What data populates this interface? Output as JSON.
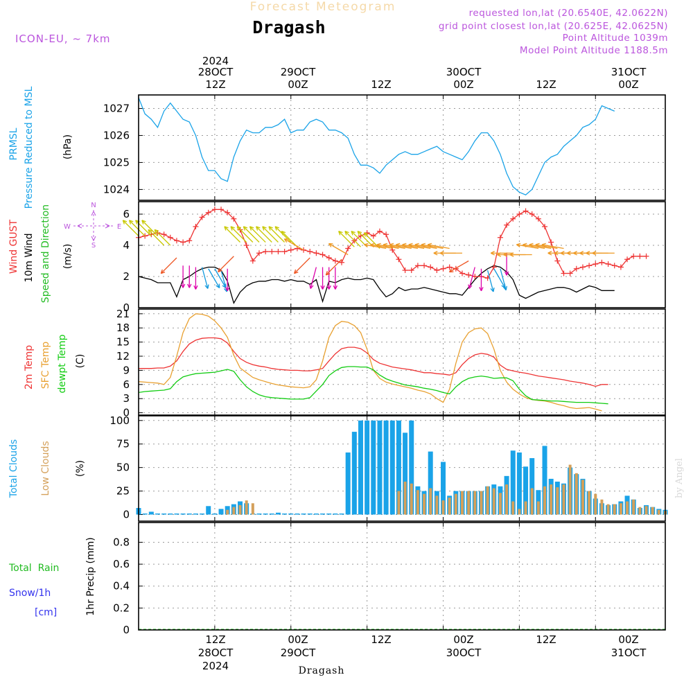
{
  "header": {
    "title": "Forecast Meteogram",
    "location": "Dragash",
    "model": "ICON-EU, ~ 7km",
    "requested": "requested lon,lat (20.6540E, 42.0622N)",
    "grid_point": "grid point closest lon,lat (20.625E, 42.0625N)",
    "point_altitude": "Point Altitude 1039m",
    "model_altitude": "Model Point Altitude 1188.5m"
  },
  "footer": {
    "location": "Dragash",
    "watermark": "by Angel"
  },
  "colors": {
    "pressure": "#1aa3e8",
    "gust": "#ee3333",
    "wind": "#000000",
    "direction": "#22bb22",
    "temp": "#ee3333",
    "sfc": "#e8a030",
    "dewpt": "#11cc11",
    "total_clouds": "#1aa3e8",
    "low_clouds": "#d4a05a",
    "rain": "#22bb22",
    "snow": "#3333ee",
    "compass": "#bb55dd",
    "header": "#bb55dd"
  },
  "time_axis": {
    "start_hour": 0,
    "end_hour": 83,
    "hour_ticks": [
      {
        "hour": 12,
        "label": "12Z",
        "date": "28OCT",
        "year": "2024"
      },
      {
        "hour": 24,
        "label": "00Z",
        "date": "29OCT"
      },
      {
        "hour": 36,
        "label": "12Z"
      },
      {
        "hour": 48,
        "label": "00Z",
        "date": "30OCT"
      },
      {
        "hour": 60,
        "label": "12Z"
      },
      {
        "hour": 72,
        "label": "00Z",
        "date": "31OCT"
      }
    ]
  },
  "chart_data": [
    {
      "type": "line",
      "panel": "pressure",
      "ylabel_lines": [
        "PRMSL",
        "Pressure Reduced to MSL"
      ],
      "unit": "(hPa)",
      "ylim": [
        1023.6,
        1027.5
      ],
      "yticks": [
        1024,
        1025,
        1026,
        1027
      ],
      "series": [
        {
          "name": "PRMSL",
          "values": [
            1027.4,
            1026.8,
            1026.6,
            1026.3,
            1026.9,
            1027.2,
            1026.9,
            1026.6,
            1026.5,
            1026.0,
            1025.2,
            1024.7,
            1024.7,
            1024.4,
            1024.3,
            1025.2,
            1025.8,
            1026.2,
            1026.1,
            1026.1,
            1026.3,
            1026.3,
            1026.4,
            1026.6,
            1026.1,
            1026.2,
            1026.2,
            1026.5,
            1026.6,
            1026.5,
            1026.2,
            1026.2,
            1026.1,
            1025.9,
            1025.3,
            1024.9,
            1024.9,
            1024.8,
            1024.6,
            1024.9,
            1025.1,
            1025.3,
            1025.4,
            1025.3,
            1025.3,
            1025.4,
            1025.5,
            1025.6,
            1025.4,
            1025.3,
            1025.2,
            1025.1,
            1025.4,
            1025.8,
            1026.1,
            1026.1,
            1025.8,
            1025.3,
            1024.6,
            1024.1,
            1023.9,
            1023.8,
            1024.0,
            1024.5,
            1025.0,
            1025.2,
            1025.3,
            1025.6,
            1025.8,
            1026.0,
            1026.3,
            1026.4,
            1026.6,
            1027.1,
            1027.0,
            1026.9
          ]
        }
      ]
    },
    {
      "type": "line",
      "panel": "wind",
      "ylabel_lines": [
        "Wind GUST",
        "10m Wind",
        "Speed and Direction"
      ],
      "unit": "(m/s)",
      "compass": {
        "n": "N",
        "s": "S",
        "e": "E",
        "w": "W"
      },
      "ylim": [
        0,
        6.8
      ],
      "yticks": [
        0,
        2,
        4,
        6
      ],
      "series": [
        {
          "name": "Wind GUST",
          "values": [
            4.5,
            4.6,
            4.7,
            4.8,
            4.7,
            4.5,
            4.3,
            4.2,
            4.3,
            5.2,
            5.8,
            6.1,
            6.3,
            6.3,
            6.1,
            5.7,
            5.0,
            4.0,
            3.0,
            3.5,
            3.6,
            3.6,
            3.6,
            3.6,
            3.7,
            3.8,
            3.7,
            3.6,
            3.5,
            3.4,
            3.2,
            3.0,
            2.9,
            3.8,
            4.3,
            4.6,
            4.8,
            4.6,
            4.9,
            4.7,
            3.7,
            3.1,
            2.4,
            2.4,
            2.7,
            2.7,
            2.6,
            2.4,
            2.5,
            2.6,
            2.5,
            2.2,
            2.1,
            2.0,
            2.0,
            1.9,
            2.6,
            4.5,
            5.3,
            5.7,
            6.0,
            6.2,
            6.0,
            5.7,
            5.2,
            4.2,
            3.0,
            2.2,
            2.2,
            2.5,
            2.6,
            2.7,
            2.8,
            2.9,
            2.8,
            2.7,
            2.6,
            3.1,
            3.3,
            3.3,
            3.3
          ]
        },
        {
          "name": "10m Wind",
          "values": [
            2.0,
            1.9,
            1.8,
            1.6,
            1.6,
            1.6,
            0.7,
            1.8,
            2.0,
            2.3,
            2.5,
            2.6,
            2.6,
            2.4,
            1.7,
            0.3,
            1.0,
            1.4,
            1.6,
            1.7,
            1.7,
            1.8,
            1.8,
            1.7,
            1.8,
            1.7,
            1.7,
            1.5,
            1.8,
            0.4,
            1.7,
            1.6,
            1.8,
            1.9,
            1.8,
            1.8,
            1.9,
            1.8,
            1.2,
            0.7,
            0.9,
            1.3,
            1.1,
            1.2,
            1.2,
            1.3,
            1.2,
            1.1,
            1.0,
            0.9,
            0.9,
            0.8,
            1.3,
            1.8,
            2.2,
            2.5,
            2.7,
            2.6,
            2.3,
            1.8,
            0.8,
            0.6,
            0.8,
            1.0,
            1.1,
            1.2,
            1.3,
            1.3,
            1.2,
            1.0,
            1.2,
            1.4,
            1.3,
            1.1,
            1.1,
            1.1
          ]
        },
        {
          "name": "Speed and Direction",
          "values": [
            4.6,
            4.6,
            4.6,
            4.6,
            4.0,
            4.0,
            3.2,
            2.7,
            2.7,
            2.6,
            2.6,
            2.5,
            2.5,
            2.4,
            2.5,
            3.3,
            4.2,
            4.2,
            4.2,
            4.2,
            4.2,
            4.2,
            4.2,
            4.2,
            4.2,
            3.9,
            3.7,
            3.2,
            2.6,
            2.6,
            2.6,
            2.6,
            3.1,
            3.4,
            3.9,
            3.9,
            3.9,
            3.9,
            3.8,
            3.8,
            3.8,
            3.8,
            3.8,
            3.8,
            3.8,
            3.8,
            3.8,
            3.8,
            3.8,
            3.8,
            3.5,
            3.5,
            3.0,
            2.6,
            2.5,
            2.4,
            2.5,
            2.5,
            3.5,
            3.5,
            3.4,
            3.4,
            3.4,
            3.8,
            3.8,
            3.8,
            3.8,
            3.8,
            3.5,
            3.5,
            3.5,
            3.5,
            3.5,
            3.5,
            3.5,
            3.5
          ],
          "direction_deg": [
            135,
            135,
            135,
            135,
            135,
            135,
            45,
            0,
            0,
            0,
            345,
            330,
            330,
            345,
            0,
            45,
            135,
            135,
            135,
            135,
            135,
            135,
            135,
            135,
            135,
            135,
            120,
            45,
            15,
            0,
            0,
            0,
            45,
            120,
            135,
            135,
            135,
            135,
            135,
            100,
            100,
            100,
            100,
            100,
            100,
            100,
            100,
            100,
            100,
            100,
            90,
            90,
            60,
            15,
            0,
            345,
            330,
            345,
            0,
            90,
            90,
            90,
            90,
            100,
            100,
            100,
            100,
            100,
            90,
            90,
            90,
            90,
            90,
            90,
            90,
            90
          ]
        }
      ]
    },
    {
      "type": "line",
      "panel": "temperature",
      "ylabel_lines": [
        "2m Temp",
        "SFC Temp",
        "dewpt Temp"
      ],
      "unit": "(C)",
      "ylim": [
        -0.5,
        22
      ],
      "yticks": [
        0,
        3,
        6,
        9,
        12,
        15,
        18,
        21
      ],
      "series": [
        {
          "name": "2m Temp",
          "values": [
            9.4,
            9.4,
            9.4,
            9.5,
            9.5,
            9.9,
            11.0,
            13.0,
            14.6,
            15.4,
            15.8,
            15.9,
            15.9,
            15.7,
            14.8,
            13.0,
            11.5,
            10.7,
            10.2,
            9.9,
            9.7,
            9.4,
            9.2,
            9.1,
            9.0,
            9.0,
            8.9,
            8.9,
            9.1,
            9.4,
            11.0,
            12.5,
            13.6,
            13.9,
            13.9,
            13.6,
            12.7,
            11.3,
            10.5,
            10.1,
            9.7,
            9.5,
            9.3,
            9.1,
            8.8,
            8.5,
            8.5,
            8.3,
            8.2,
            8.0,
            8.5,
            10.2,
            11.5,
            12.3,
            12.6,
            12.4,
            11.8,
            10.1,
            9.2,
            8.9,
            8.6,
            8.4,
            8.1,
            7.8,
            7.6,
            7.4,
            7.2,
            7.0,
            6.7,
            6.5,
            6.3,
            6.0,
            5.6,
            6.0,
            6.0
          ]
        },
        {
          "name": "SFC Temp",
          "values": [
            6.6,
            6.5,
            6.4,
            6.3,
            6.0,
            7.5,
            12.0,
            17.0,
            20.0,
            21.0,
            20.9,
            20.5,
            19.5,
            18.0,
            16.0,
            12.2,
            9.5,
            8.5,
            7.5,
            7.0,
            6.6,
            6.2,
            5.9,
            5.7,
            5.5,
            5.4,
            5.3,
            5.5,
            7.0,
            11.0,
            16.0,
            18.5,
            19.4,
            19.2,
            18.5,
            17.0,
            13.5,
            9.0,
            7.3,
            6.5,
            6.1,
            5.8,
            5.5,
            5.2,
            4.8,
            4.5,
            4.0,
            3.0,
            2.2,
            5.0,
            10.5,
            15.0,
            17.0,
            17.8,
            18.0,
            16.8,
            13.5,
            9.0,
            6.5,
            5.0,
            4.0,
            3.2,
            2.8,
            2.6,
            2.5,
            2.2,
            1.8,
            1.5,
            1.1,
            0.9,
            1.0,
            1.1,
            0.8,
            0.4
          ]
        },
        {
          "name": "dewpt Temp",
          "values": [
            4.3,
            4.5,
            4.6,
            4.7,
            4.8,
            5.1,
            6.6,
            7.6,
            8.0,
            8.3,
            8.4,
            8.5,
            8.6,
            8.9,
            9.2,
            8.8,
            7.0,
            5.5,
            4.5,
            3.8,
            3.4,
            3.2,
            3.1,
            3.0,
            2.9,
            2.9,
            2.9,
            3.2,
            4.6,
            6.0,
            7.9,
            8.9,
            9.6,
            9.8,
            9.8,
            9.7,
            9.7,
            9.1,
            8.0,
            7.2,
            6.7,
            6.3,
            5.9,
            5.7,
            5.5,
            5.2,
            5.0,
            4.7,
            4.3,
            4.0,
            5.5,
            6.6,
            7.3,
            7.6,
            7.8,
            7.6,
            7.3,
            7.4,
            7.4,
            6.8,
            5.0,
            3.6,
            2.8,
            2.7,
            2.6,
            2.5,
            2.5,
            2.4,
            2.3,
            2.2,
            2.2,
            2.2,
            2.1,
            2.0,
            1.9
          ]
        }
      ]
    },
    {
      "type": "bar",
      "panel": "clouds",
      "ylabel_lines": [
        "Total Clouds",
        "Low Clouds"
      ],
      "unit": "(%)",
      "ylim": [
        -7,
        105
      ],
      "yticks": [
        0,
        25,
        50,
        75,
        100
      ],
      "series": [
        {
          "name": "Total Clouds",
          "values": [
            7,
            0,
            3,
            1,
            0,
            0,
            0,
            0,
            0,
            0,
            0,
            9,
            1,
            6,
            9,
            11,
            14,
            12,
            1,
            1,
            0,
            1,
            2,
            0,
            0,
            0,
            0,
            0,
            0,
            0,
            0,
            0,
            0,
            66,
            88,
            100,
            100,
            100,
            100,
            100,
            100,
            100,
            87,
            100,
            30,
            25,
            67,
            25,
            56,
            20,
            25,
            25,
            25,
            25,
            25,
            30,
            32,
            30,
            41,
            68,
            66,
            51,
            60,
            26,
            73,
            38,
            35,
            33,
            50,
            43,
            38,
            25,
            17,
            12,
            10,
            11,
            14,
            20,
            16,
            7,
            10,
            8,
            6,
            5
          ]
        },
        {
          "name": "Low Clouds",
          "values": [
            0,
            0,
            0,
            0,
            0,
            0,
            0,
            0,
            0,
            0,
            0,
            0,
            0,
            0,
            5,
            8,
            10,
            15,
            12,
            0,
            0,
            0,
            0,
            0,
            0,
            0,
            0,
            0,
            0,
            0,
            0,
            0,
            0,
            0,
            0,
            0,
            0,
            0,
            0,
            0,
            0,
            25,
            35,
            33,
            26,
            22,
            28,
            20,
            15,
            18,
            22,
            25,
            25,
            25,
            25,
            30,
            28,
            23,
            32,
            14,
            6,
            14,
            28,
            14,
            30,
            32,
            29,
            32,
            53,
            44,
            37,
            25,
            22,
            16,
            11,
            11,
            12,
            14,
            16,
            8,
            9,
            8,
            5,
            4
          ]
        }
      ]
    },
    {
      "type": "line",
      "panel": "precipitation",
      "ylabel_lines": [
        "Total  Rain",
        "Snow/1h",
        "[cm]"
      ],
      "unit": "1hr Precip (mm)",
      "ylim": [
        0,
        0.98
      ],
      "yticks": [
        0,
        0.2,
        0.4,
        0.6,
        0.8
      ],
      "series": [
        {
          "name": "Total  Rain",
          "values": [
            0,
            0,
            0,
            0,
            0,
            0,
            0,
            0,
            0,
            0,
            0,
            0,
            0,
            0,
            0,
            0,
            0,
            0,
            0,
            0,
            0,
            0,
            0,
            0,
            0,
            0,
            0,
            0,
            0,
            0,
            0,
            0,
            0,
            0,
            0,
            0,
            0,
            0,
            0,
            0,
            0,
            0,
            0,
            0,
            0,
            0,
            0,
            0,
            0,
            0,
            0,
            0,
            0,
            0,
            0,
            0,
            0,
            0,
            0,
            0,
            0,
            0,
            0,
            0,
            0,
            0,
            0,
            0,
            0,
            0,
            0,
            0,
            0,
            0,
            0,
            0,
            0,
            0,
            0,
            0,
            0,
            0,
            0,
            0
          ]
        }
      ]
    }
  ]
}
